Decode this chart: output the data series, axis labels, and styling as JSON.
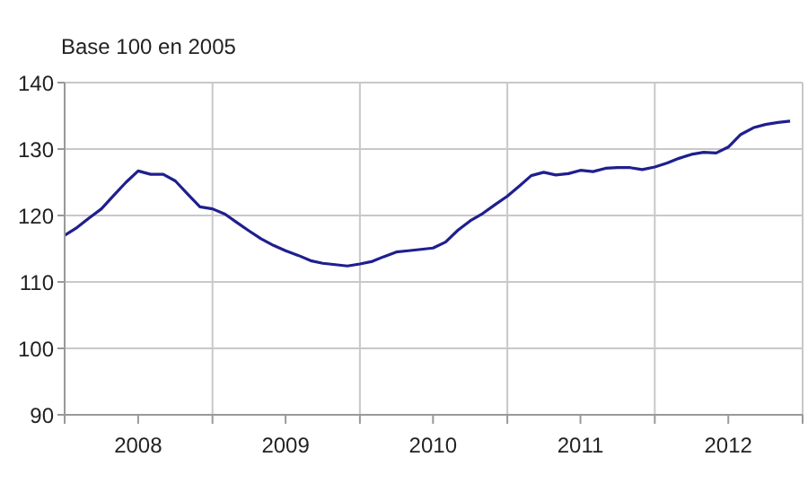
{
  "chart_data": {
    "type": "line",
    "ylabel": "Base 100 en 2005",
    "x": [
      "2008-01",
      "2008-02",
      "2008-03",
      "2008-04",
      "2008-05",
      "2008-06",
      "2008-07",
      "2008-08",
      "2008-09",
      "2008-10",
      "2008-11",
      "2008-12",
      "2009-01",
      "2009-02",
      "2009-03",
      "2009-04",
      "2009-05",
      "2009-06",
      "2009-07",
      "2009-08",
      "2009-09",
      "2009-10",
      "2009-11",
      "2009-12",
      "2010-01",
      "2010-02",
      "2010-03",
      "2010-04",
      "2010-05",
      "2010-06",
      "2010-07",
      "2010-08",
      "2010-09",
      "2010-10",
      "2010-11",
      "2010-12",
      "2011-01",
      "2011-02",
      "2011-03",
      "2011-04",
      "2011-05",
      "2011-06",
      "2011-07",
      "2011-08",
      "2011-09",
      "2011-10",
      "2011-11",
      "2011-12",
      "2012-01",
      "2012-02",
      "2012-03",
      "2012-04",
      "2012-05",
      "2012-06",
      "2012-07",
      "2012-08",
      "2012-09",
      "2012-10",
      "2012-11",
      "2012-12"
    ],
    "series": [
      {
        "color": "#1f1f8f",
        "values": [
          117,
          118.2,
          119.6,
          121,
          123,
          125,
          126.7,
          126.2,
          126.2,
          125.2,
          123.2,
          121.3,
          121,
          120.2,
          119,
          117.7,
          116.5,
          115.5,
          114.7,
          114,
          113.2,
          112.8,
          112.6,
          112.4,
          112.7,
          113.1,
          113.8,
          114.5,
          114.7,
          114.9,
          115.1,
          116,
          117.8,
          119.2,
          120.3,
          121.6,
          122.9,
          124.5,
          126,
          126.5,
          126.1,
          126.3,
          126.8,
          126.6,
          127.1,
          127.2,
          127.2,
          126.9,
          127.3,
          127.9,
          128.6,
          129.2,
          129.5,
          129.4,
          130.3,
          132.2,
          133.2,
          133.7,
          134,
          134.2
        ]
      }
    ],
    "xlim": [
      "2008-01",
      "2013-01"
    ],
    "xticks": [
      {
        "value": "2008-01",
        "label": null
      },
      {
        "value": "2008-07",
        "label": "2008"
      },
      {
        "value": "2009-01",
        "label": null
      },
      {
        "value": "2009-07",
        "label": "2009"
      },
      {
        "value": "2010-01",
        "label": null
      },
      {
        "value": "2010-07",
        "label": "2010"
      },
      {
        "value": "2011-01",
        "label": null
      },
      {
        "value": "2011-07",
        "label": "2011"
      },
      {
        "value": "2012-01",
        "label": null
      },
      {
        "value": "2012-07",
        "label": "2012"
      },
      {
        "value": "2013-01",
        "label": null
      }
    ],
    "ylim": [
      90,
      140
    ],
    "yticks": [
      90,
      100,
      110,
      120,
      130,
      140
    ],
    "grid": true,
    "legend": false,
    "marker": "none",
    "line_style": "solid"
  }
}
